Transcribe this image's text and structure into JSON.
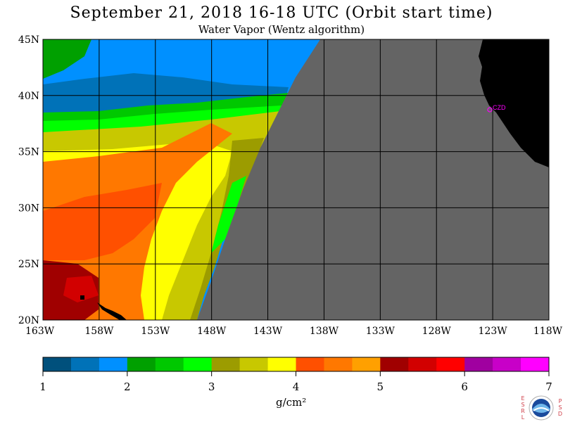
{
  "header": {
    "title": "September 21, 2018  16-18 UTC  (Orbit start time)",
    "subtitle": "Water Vapor (Wentz algorithm)"
  },
  "map": {
    "lon_range": [
      -163,
      -118
    ],
    "lat_range": [
      20,
      45
    ],
    "lat_labels": [
      "45N",
      "40N",
      "35N",
      "30N",
      "25N",
      "20N"
    ],
    "lon_labels": [
      "163W",
      "158W",
      "153W",
      "148W",
      "143W",
      "138W",
      "133W",
      "128W",
      "123W",
      "118W"
    ],
    "station_label": "CZD",
    "colors": {
      "no_data": "#646464",
      "land": "#000000",
      "grid": "#000000",
      "station": "#ff00ff"
    }
  },
  "colorbar": {
    "ticks": [
      "1",
      "2",
      "3",
      "4",
      "5",
      "6",
      "7"
    ],
    "unit": "g/cm²",
    "colors": [
      "#00507c",
      "#0072b8",
      "#0090ff",
      "#00a000",
      "#00c800",
      "#00ff00",
      "#9c9c00",
      "#c8c800",
      "#ffff00",
      "#ff5000",
      "#ff7800",
      "#ffa000",
      "#a00000",
      "#d20000",
      "#ff0000",
      "#a000a0",
      "#c800c8",
      "#ff00ff"
    ]
  },
  "logo": {
    "left_text": "ESRL",
    "right_text": "PSD",
    "center_text": "NOAA"
  }
}
